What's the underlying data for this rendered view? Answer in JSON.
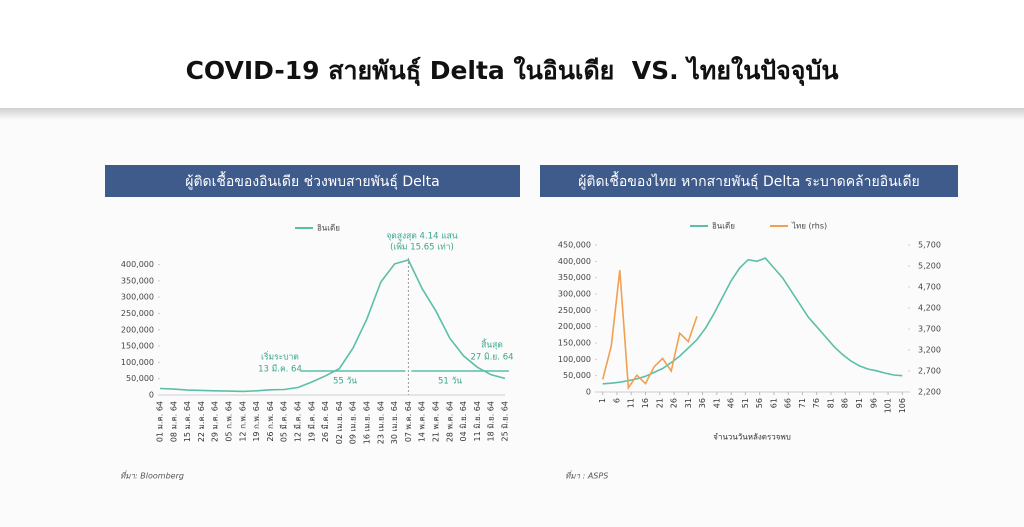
{
  "header": {
    "title": "COVID-19 สายพันธุ์ Delta ในอินเดีย  VS. ไทยในปัจจุบัน"
  },
  "chart_data": [
    {
      "type": "line",
      "title": "ผู้ติดเชื้อของอินเดีย ช่วงพบสายพันธุ์ Delta",
      "categories": [
        "01 ม.ค. 64",
        "08 ม.ค. 64",
        "15 ม.ค. 64",
        "22 ม.ค. 64",
        "29 ม.ค. 64",
        "05 ก.พ. 64",
        "12 ก.พ. 64",
        "19 ก.พ. 64",
        "26 ก.พ. 64",
        "05 มี.ค. 64",
        "12 มี.ค. 64",
        "19 มี.ค. 64",
        "26 มี.ค. 64",
        "02 เม.ย. 64",
        "09 เม.ย. 64",
        "16 เม.ย. 64",
        "23 เม.ย. 64",
        "30 เม.ย. 64",
        "07 พ.ค. 64",
        "14 พ.ค. 64",
        "21 พ.ค. 64",
        "28 พ.ค. 64",
        "04 มิ.ย. 64",
        "11 มิ.ย. 64",
        "18 มิ.ย. 64",
        "25 มิ.ย. 64"
      ],
      "series": [
        {
          "name": "อินเดีย",
          "color": "#5bbfa8",
          "values": [
            20000,
            18000,
            15000,
            14000,
            13000,
            12000,
            11000,
            13000,
            16000,
            17000,
            23000,
            40000,
            59000,
            81000,
            145000,
            234000,
            346000,
            402000,
            414000,
            326000,
            257000,
            174000,
            120000,
            85000,
            62000,
            51000
          ]
        }
      ],
      "ylim": [
        0,
        420000
      ],
      "yticks": [
        0,
        {
          "value": 50000,
          "label": "50,000"
        },
        {
          "value": 100000,
          "label": "100,000"
        },
        {
          "value": 150000,
          "label": "150,000"
        },
        {
          "value": 200000,
          "label": "200,000"
        },
        {
          "value": 250000,
          "label": "250,000"
        },
        {
          "value": 300000,
          "label": "300,000"
        },
        {
          "value": 350000,
          "label": "350,000"
        },
        {
          "value": 400000,
          "label": "400,000"
        }
      ],
      "annotations": [
        "จุดสูงสุด 4.14 แสน",
        "(เพิ่ม 15.65 เท่า)",
        "เริ่มระบาด",
        "13 มี.ค. 64",
        "55 วัน",
        "51 วัน",
        "สิ้นสุด",
        "27 มิ.ย. 64"
      ],
      "source": "ที่มา: Bloomberg"
    },
    {
      "type": "line",
      "title": "ผู้ติดเชื้อของไทย หากสายพันธุ์ Delta ระบาดคล้ายอินเดีย",
      "x_label": "จำนวนวันหลังตรวจพบ",
      "x": [
        1,
        4,
        7,
        10,
        13,
        16,
        19,
        22,
        25,
        28,
        31,
        34,
        37,
        40,
        43,
        46,
        49,
        52,
        55,
        58,
        61,
        64,
        67,
        70,
        73,
        76,
        79,
        82,
        85,
        88,
        91,
        94,
        97,
        100,
        103,
        106
      ],
      "series": [
        {
          "name": "อินเดีย",
          "color": "#5bbfa8",
          "values": [
            25000,
            27000,
            30000,
            35000,
            40000,
            48000,
            60000,
            72000,
            90000,
            110000,
            135000,
            160000,
            195000,
            240000,
            290000,
            340000,
            380000,
            405000,
            400000,
            410000,
            380000,
            350000,
            310000,
            270000,
            230000,
            200000,
            170000,
            140000,
            115000,
            95000,
            80000,
            70000,
            65000,
            58000,
            52000,
            50000
          ]
        },
        {
          "name": "ไทย (rhs)",
          "color": "#f0a050",
          "axis": "y2",
          "values": [
            2500,
            3300,
            5100,
            2300,
            2600,
            2400,
            2800,
            3000,
            2700,
            3600,
            3400,
            4000,
            null,
            null,
            null,
            null,
            null,
            null,
            null,
            null,
            null,
            null,
            null,
            null,
            null,
            null,
            null,
            null,
            null,
            null,
            null,
            null,
            null,
            null,
            null,
            null
          ]
        }
      ],
      "xlim": [
        -1,
        108
      ],
      "xticks": [
        1,
        6,
        11,
        16,
        21,
        26,
        31,
        36,
        41,
        46,
        51,
        56,
        61,
        66,
        71,
        76,
        81,
        86,
        91,
        96,
        101,
        106
      ],
      "ylim": [
        0,
        450000
      ],
      "yticks": [
        0,
        {
          "value": 50000,
          "label": "50,000"
        },
        {
          "value": 100000,
          "label": "100,000"
        },
        {
          "value": 150000,
          "label": "150,000"
        },
        {
          "value": 200000,
          "label": "200,000"
        },
        {
          "value": 250000,
          "label": "250,000"
        },
        {
          "value": 300000,
          "label": "300,000"
        },
        {
          "value": 350000,
          "label": "350,000"
        },
        {
          "value": 400000,
          "label": "400,000"
        },
        {
          "value": 450000,
          "label": "450,000"
        }
      ],
      "y2lim": [
        2200,
        5700
      ],
      "y2ticks": [
        {
          "value": 2200,
          "label": "2,200"
        },
        {
          "value": 2700,
          "label": "2,700"
        },
        {
          "value": 3200,
          "label": "3,200"
        },
        {
          "value": 3700,
          "label": "3,700"
        },
        {
          "value": 4200,
          "label": "4,200"
        },
        {
          "value": 4700,
          "label": "4,700"
        },
        {
          "value": 5200,
          "label": "5,200"
        },
        {
          "value": 5700,
          "label": "5,700"
        }
      ],
      "source": "ที่มา : ASPS"
    }
  ]
}
